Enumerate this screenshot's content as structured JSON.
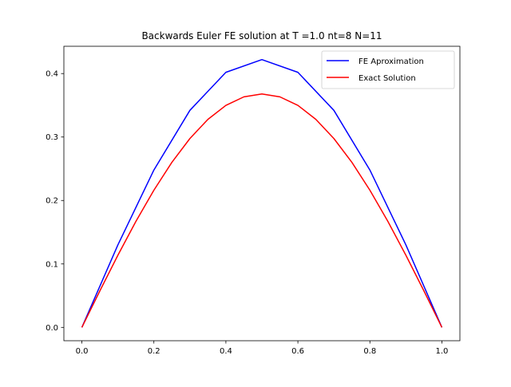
{
  "chart_data": {
    "type": "line",
    "title": "Backwards Euler FE solution at T =1.0 nt=8 N=11",
    "xlabel": "",
    "ylabel": "",
    "xlim": [
      -0.05,
      1.05
    ],
    "ylim": [
      -0.021,
      0.443
    ],
    "xticks": [
      "0.0",
      "0.2",
      "0.4",
      "0.6",
      "0.8",
      "1.0"
    ],
    "yticks": [
      "0.0",
      "0.1",
      "0.2",
      "0.3",
      "0.4"
    ],
    "grid": false,
    "legend_position": "top-right",
    "series": [
      {
        "name": "FE Aproximation",
        "color": "#0000ff",
        "x": [
          0.0,
          0.1,
          0.2,
          0.3,
          0.4,
          0.5,
          0.6,
          0.7,
          0.8,
          0.9,
          1.0
        ],
        "y": [
          0.0,
          0.13,
          0.248,
          0.342,
          0.402,
          0.422,
          0.402,
          0.342,
          0.248,
          0.13,
          0.0
        ]
      },
      {
        "name": "Exact Solution",
        "color": "#ff0000",
        "function": "exp(-1) * sin(pi * x)",
        "x": [
          0.0,
          0.05,
          0.1,
          0.15,
          0.2,
          0.25,
          0.3,
          0.35,
          0.4,
          0.45,
          0.5,
          0.55,
          0.6,
          0.65,
          0.7,
          0.75,
          0.8,
          0.85,
          0.9,
          0.95,
          1.0
        ],
        "y": [
          0.0,
          0.0576,
          0.1137,
          0.167,
          0.2162,
          0.2601,
          0.2976,
          0.3278,
          0.3499,
          0.3633,
          0.3679,
          0.3633,
          0.3499,
          0.3278,
          0.2976,
          0.2601,
          0.2162,
          0.167,
          0.1137,
          0.0576,
          0.0
        ]
      }
    ]
  }
}
